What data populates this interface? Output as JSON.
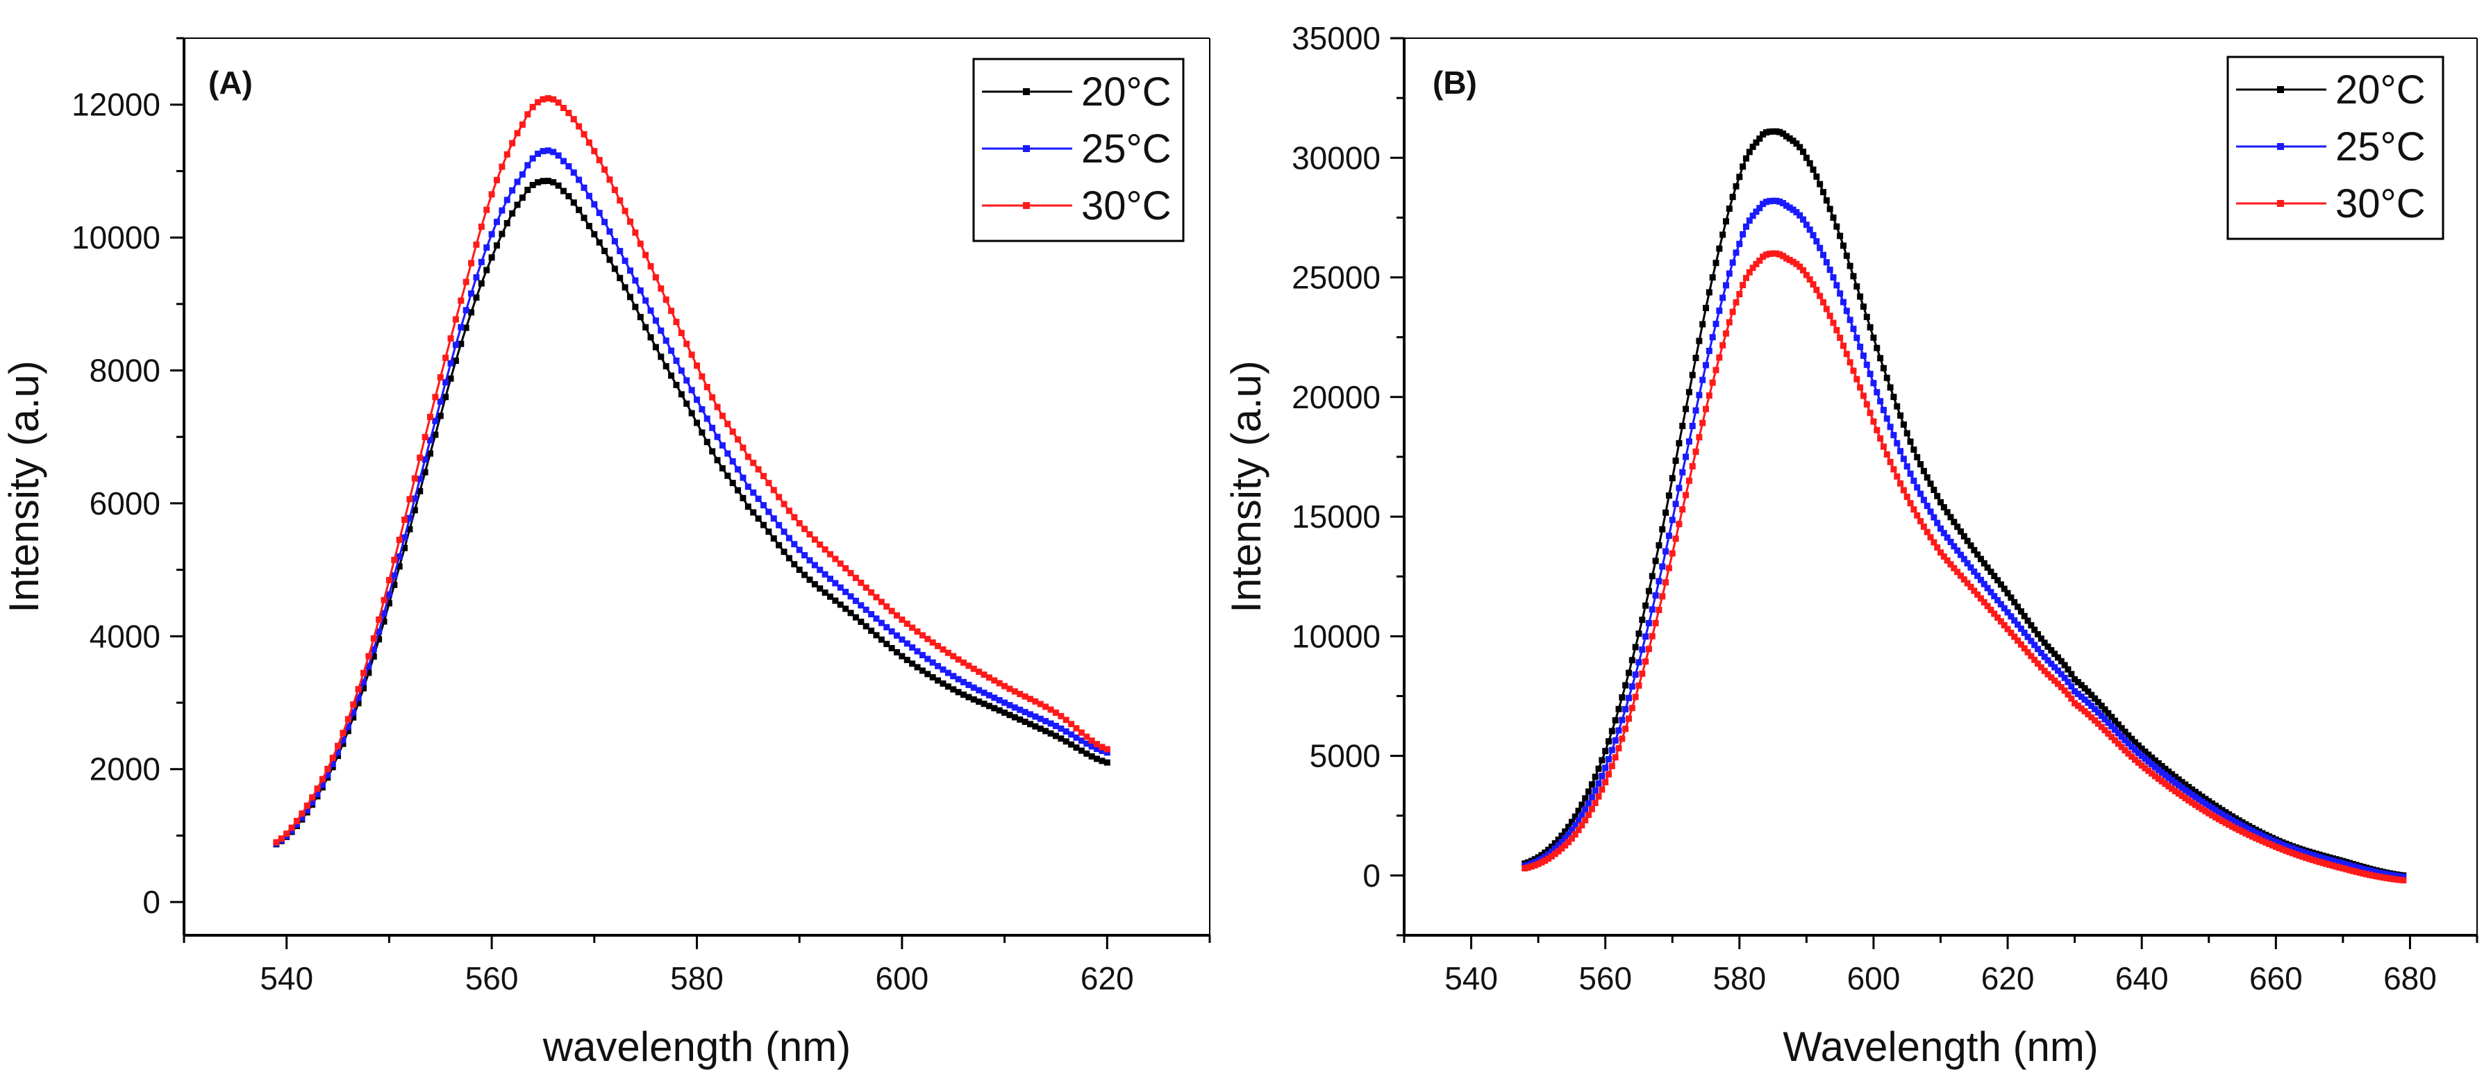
{
  "chart_data": [
    {
      "type": "scatter",
      "panel_label": "(A)",
      "xlabel": "wavelength (nm)",
      "ylabel": "Intensity (a.u)",
      "xlim": [
        530,
        630
      ],
      "ylim": [
        -500,
        13000
      ],
      "xticks": [
        540,
        560,
        580,
        600,
        620
      ],
      "yticks": [
        0,
        2000,
        4000,
        6000,
        8000,
        10000,
        12000
      ],
      "legend_position": "top-right",
      "grid": false,
      "series": [
        {
          "name": "20°C",
          "color": "#000000",
          "x": [
            539,
            542,
            545,
            548,
            551,
            554,
            557,
            560,
            563,
            565,
            567,
            570,
            573,
            576,
            579,
            582,
            585,
            590,
            595,
            600,
            605,
            610,
            615,
            620
          ],
          "y": [
            870,
            1350,
            2200,
            3450,
            5050,
            6750,
            8400,
            9700,
            10600,
            10850,
            10700,
            10050,
            9250,
            8350,
            7500,
            6650,
            5950,
            5000,
            4350,
            3700,
            3200,
            2850,
            2500,
            2100
          ]
        },
        {
          "name": "25°C",
          "color": "#1a1aff",
          "x": [
            539,
            542,
            545,
            548,
            551,
            554,
            557,
            560,
            563,
            565,
            567,
            570,
            573,
            576,
            579,
            582,
            585,
            590,
            595,
            600,
            605,
            610,
            615,
            620
          ],
          "y": [
            880,
            1380,
            2250,
            3550,
            5200,
            6950,
            8650,
            10050,
            10950,
            11300,
            11150,
            10500,
            9650,
            8750,
            7850,
            7000,
            6250,
            5300,
            4600,
            3950,
            3400,
            3000,
            2650,
            2250
          ]
        },
        {
          "name": "30°C",
          "color": "#ff1a1a",
          "x": [
            539,
            542,
            545,
            548,
            551,
            554,
            557,
            560,
            563,
            565,
            567,
            570,
            573,
            576,
            579,
            582,
            585,
            590,
            595,
            600,
            605,
            610,
            615,
            620
          ],
          "y": [
            900,
            1450,
            2350,
            3700,
            5450,
            7300,
            9050,
            10650,
            11700,
            12080,
            11950,
            11300,
            10400,
            9400,
            8400,
            7450,
            6700,
            5700,
            4950,
            4250,
            3700,
            3250,
            2850,
            2300
          ]
        }
      ]
    },
    {
      "type": "scatter",
      "panel_label": "(B)",
      "xlabel": "Wavelength (nm)",
      "ylabel": "Intensity (a.u)",
      "xlim": [
        530,
        690
      ],
      "ylim": [
        -2500,
        35000
      ],
      "xticks": [
        540,
        560,
        580,
        600,
        620,
        640,
        660,
        680
      ],
      "yticks": [
        0,
        5000,
        10000,
        15000,
        20000,
        25000,
        30000,
        35000
      ],
      "legend_position": "top-right",
      "grid": false,
      "series": [
        {
          "name": "20°C",
          "color": "#000000",
          "x": [
            548,
            552,
            556,
            560,
            564,
            568,
            572,
            576,
            580,
            583,
            585,
            587,
            590,
            594,
            598,
            602,
            606,
            610,
            615,
            620,
            625,
            630,
            640,
            650,
            660,
            670,
            679
          ],
          "y": [
            500,
            1200,
            2700,
            5200,
            9000,
            13800,
            19500,
            25000,
            29200,
            30800,
            31100,
            30900,
            30000,
            27500,
            24200,
            20800,
            17800,
            15600,
            13600,
            11800,
            9900,
            8200,
            5300,
            3100,
            1500,
            600,
            0
          ]
        },
        {
          "name": "25°C",
          "color": "#1a1aff",
          "x": [
            548,
            552,
            556,
            560,
            564,
            568,
            572,
            576,
            580,
            583,
            585,
            587,
            590,
            594,
            598,
            602,
            606,
            610,
            615,
            620,
            625,
            630,
            640,
            650,
            660,
            670,
            679
          ],
          "y": [
            400,
            1000,
            2300,
            4500,
            7900,
            12300,
            17500,
            22500,
            26400,
            27900,
            28200,
            28000,
            27200,
            25000,
            22100,
            19100,
            16500,
            14500,
            12700,
            11000,
            9300,
            7700,
            5000,
            2900,
            1400,
            500,
            -50
          ]
        },
        {
          "name": "30°C",
          "color": "#ff1a1a",
          "x": [
            548,
            552,
            556,
            560,
            564,
            568,
            572,
            576,
            580,
            583,
            585,
            587,
            590,
            594,
            598,
            602,
            606,
            610,
            615,
            620,
            625,
            630,
            640,
            650,
            660,
            670,
            679
          ],
          "y": [
            300,
            800,
            1900,
            3900,
            7000,
            11100,
            15900,
            20600,
            24300,
            25700,
            26000,
            25800,
            25100,
            23100,
            20400,
            17600,
            15300,
            13500,
            11900,
            10300,
            8700,
            7200,
            4600,
            2600,
            1200,
            300,
            -200
          ]
        }
      ]
    }
  ]
}
